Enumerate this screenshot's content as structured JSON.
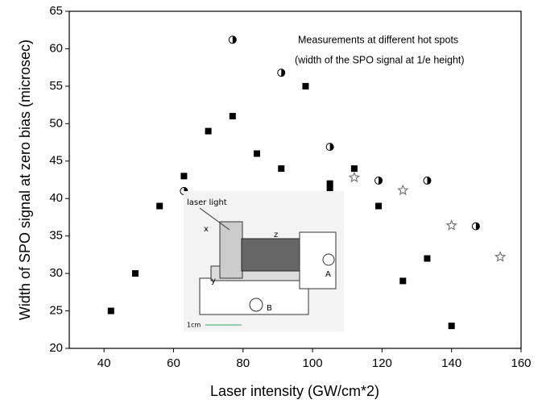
{
  "chart_data": {
    "type": "scatter",
    "x_label": "Laser intensity (GW/cm*2)",
    "y_label": "Width of SPO signal at zero bias (microsec)",
    "annotation": [
      "Measurements at different hot spots",
      "(width of the SPO signal at 1/e height)"
    ],
    "inset_labels": {
      "laser": "laser light",
      "x": "x",
      "z": "z",
      "y": "y",
      "a": "A",
      "b": "B",
      "scale": "1cm"
    },
    "xlim": [
      30,
      160
    ],
    "xticks": [
      40,
      60,
      80,
      100,
      120,
      140,
      160
    ],
    "ylim": [
      20,
      65
    ],
    "yticks": [
      20,
      25,
      30,
      35,
      40,
      45,
      50,
      55,
      60,
      65
    ],
    "series": [
      {
        "marker": "square",
        "color": "#000000",
        "x": [
          42,
          49,
          56,
          63,
          70,
          77,
          84,
          91,
          98,
          105,
          105,
          112,
          119,
          126,
          133,
          140
        ],
        "values": [
          25,
          30,
          39,
          43,
          49,
          51,
          46,
          44,
          55,
          42,
          41.4,
          44,
          39,
          29,
          32,
          23
        ]
      },
      {
        "marker": "half-circle",
        "color": "#000000",
        "x": [
          63,
          77,
          91,
          105,
          119,
          133,
          147
        ],
        "values": [
          41,
          61.2,
          56.8,
          46.9,
          42.4,
          42.4,
          36.3
        ]
      },
      {
        "marker": "star",
        "color": "#777777",
        "x": [
          112,
          126,
          140,
          154
        ],
        "values": [
          42.8,
          41.1,
          36.4,
          32.2
        ]
      }
    ]
  }
}
